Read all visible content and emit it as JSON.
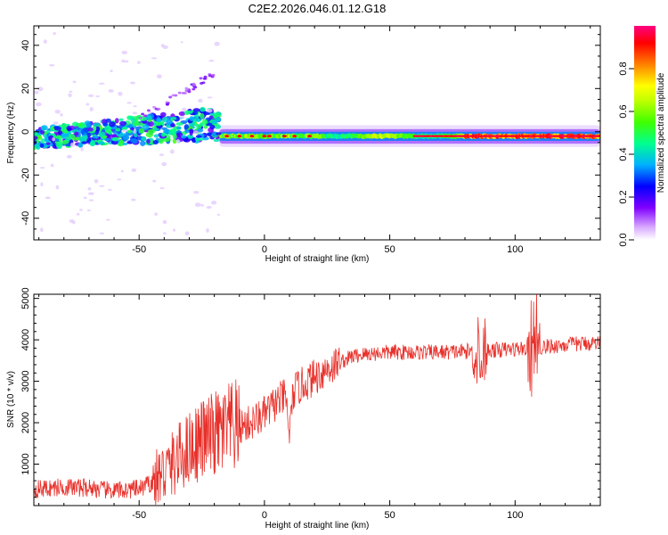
{
  "title": "C2E2.2026.046.01.12.G18",
  "chart_data": [
    {
      "type": "heatmap",
      "xlabel": "Height of straight line (km)",
      "ylabel": "Frequency (Hz)",
      "xlim": [
        -92,
        134
      ],
      "ylim": [
        -50,
        49
      ],
      "x_ticks": [
        -50,
        0,
        50,
        100
      ],
      "y_ticks": [
        -40,
        -20,
        0,
        20,
        40
      ],
      "colorbar": {
        "label": "Normalized spectral amplitude",
        "range": [
          0,
          1
        ],
        "ticks": [
          "0.0",
          "0.2",
          "0.4",
          "0.6",
          "0.8"
        ],
        "colormap": [
          "#ffffff",
          "#c080ff",
          "#8000ff",
          "#0000ff",
          "#00c0ff",
          "#00ff80",
          "#80ff00",
          "#ffff00",
          "#ff8000",
          "#ff0000",
          "#ff0080"
        ]
      },
      "description_points": [
        {
          "x": -90,
          "y": -3,
          "v": 0.3
        },
        {
          "x": -70,
          "y": -1,
          "v": 0.4
        },
        {
          "x": -50,
          "y": 0,
          "v": 0.35
        },
        {
          "x": -30,
          "y": 3,
          "v": 0.3
        },
        {
          "x": -18,
          "y": -3,
          "v": 0.5
        },
        {
          "x": 0,
          "y": -2,
          "v": 0.7
        },
        {
          "x": 20,
          "y": -1,
          "v": 0.6
        },
        {
          "x": 60,
          "y": -2,
          "v": 0.55
        },
        {
          "x": 85,
          "y": -2,
          "v": 0.75
        },
        {
          "x": 110,
          "y": -2,
          "v": 0.85
        },
        {
          "x": 133,
          "y": -2,
          "v": 0.95
        }
      ]
    },
    {
      "type": "line",
      "xlabel": "Height of straight line (km)",
      "ylabel": "SNR (10 * v/v)",
      "xlim": [
        -92,
        134
      ],
      "ylim": [
        0,
        5100
      ],
      "x_ticks": [
        -50,
        0,
        50,
        100
      ],
      "y_ticks": [
        1000,
        2000,
        3000,
        4000,
        5000
      ],
      "color": "#e8302a",
      "series": [
        {
          "x": [
            -92,
            -85,
            -80,
            -75,
            -70,
            -65,
            -60,
            -55,
            -50,
            -45,
            -40,
            -35,
            -30,
            -25,
            -20,
            -15,
            -10,
            -5,
            0,
            5,
            10,
            15,
            20,
            25,
            30,
            35,
            40,
            45,
            50,
            60,
            70,
            80,
            85,
            90,
            95,
            100,
            105,
            110,
            115,
            120,
            125,
            130,
            134
          ],
          "values": [
            400,
            420,
            450,
            430,
            440,
            380,
            350,
            380,
            400,
            550,
            800,
            1100,
            1400,
            1600,
            1700,
            1800,
            1900,
            2000,
            2200,
            2500,
            2700,
            2900,
            3100,
            3300,
            3450,
            3600,
            3650,
            3680,
            3700,
            3700,
            3700,
            3720,
            3750,
            3750,
            3760,
            3780,
            3800,
            3820,
            3850,
            3880,
            3900,
            3920,
            3930
          ]
        }
      ]
    }
  ]
}
